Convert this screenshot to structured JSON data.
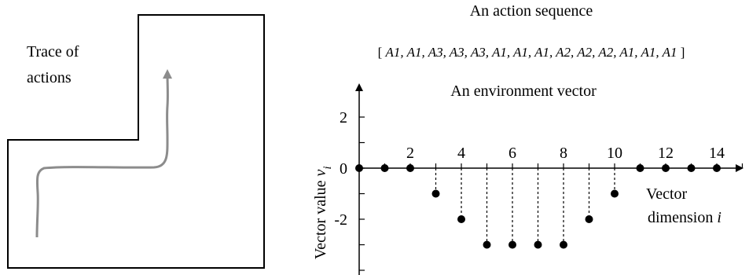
{
  "left_panel": {
    "trace_label_line1": "Trace of",
    "trace_label_line2": "actions",
    "colors": {
      "trace": "#8c8c8c",
      "outline": "#000000"
    }
  },
  "right_panel": {
    "sequence_title": "An action sequence",
    "sequence_items": [
      "A1",
      "A1",
      "A3",
      "A3",
      "A3",
      "A1",
      "A1",
      "A1",
      "A2",
      "A2",
      "A2",
      "A1",
      "A1",
      "A1"
    ],
    "sequence_open": "[ ",
    "sequence_close": " ]",
    "sequence_separator": ", "
  },
  "chart_data": {
    "type": "scatter",
    "title": "An environment vector",
    "ylabel_text": "Vector value ",
    "ylabel_var": "v",
    "ylabel_sub": "i",
    "xlabel_line1": "Vector",
    "xlabel_line2_text": "dimension ",
    "xlabel_line2_var": "i",
    "x": [
      0,
      1,
      2,
      3,
      4,
      5,
      6,
      7,
      8,
      9,
      10,
      11,
      12,
      13,
      14
    ],
    "y": [
      0,
      0,
      0,
      -1,
      -2,
      -3,
      -3,
      -3,
      -3,
      -2,
      -1,
      0,
      0,
      0,
      0
    ],
    "x_tick_labels": [
      "2",
      "4",
      "6",
      "8",
      "10",
      "12",
      "14"
    ],
    "x_tick_values": [
      2,
      4,
      6,
      8,
      10,
      12,
      14
    ],
    "y_tick_labels": [
      "2",
      "0",
      "-2"
    ],
    "y_tick_values": [
      2,
      0,
      -2
    ],
    "ylim": [
      -4,
      3
    ],
    "xlim": [
      0,
      15
    ],
    "stems": "dotted",
    "colors": {
      "marker": "#000000"
    }
  }
}
